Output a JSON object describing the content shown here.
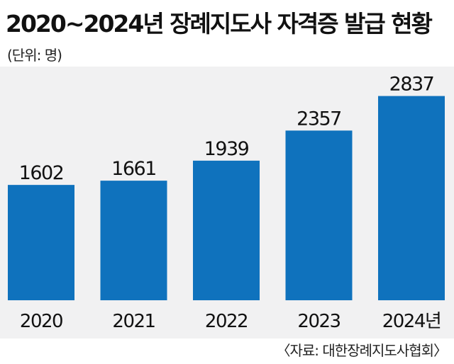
{
  "title": "2020~2024년 장례지도사 자격증 발급 현황",
  "unit_label": "(단위: 명)",
  "source": "〈자료: 대한장례지도사협회〉",
  "colors": {
    "bar": "#0f72bd",
    "panel": "#f1f1f2",
    "text": "#111111"
  },
  "chart_data": {
    "type": "bar",
    "title": "2020~2024년 장례지도사 자격증 발급 현황",
    "categories": [
      "2020",
      "2021",
      "2022",
      "2023",
      "2024년"
    ],
    "values": [
      1602,
      1661,
      1939,
      2357,
      2837
    ],
    "data_labels": [
      "1602",
      "1661",
      "1939",
      "2357",
      "2837"
    ],
    "xlabel": "",
    "ylabel": "",
    "ylim": [
      0,
      3000
    ],
    "grid": false,
    "legend": "none"
  }
}
